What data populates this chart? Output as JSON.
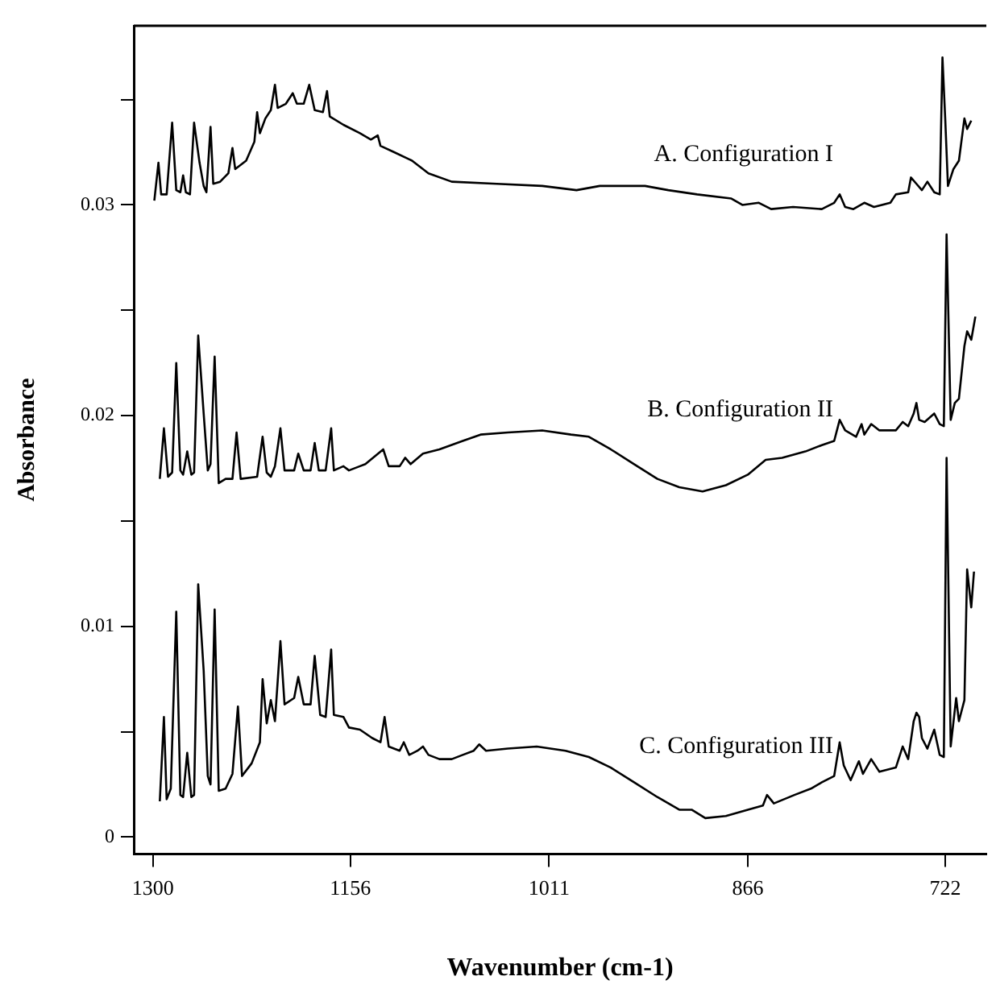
{
  "chart_data": {
    "type": "line",
    "xlabel": "Wavenumber (cm-1)",
    "ylabel": "Absorbance",
    "xlim": [
      1314,
      692
    ],
    "xticks": [
      1300,
      1156,
      1011,
      866,
      722
    ],
    "ylim": [
      -0.0008,
      0.0385
    ],
    "yticks": [
      0,
      {
        "value": 0.005,
        "label": null
      },
      0.01,
      {
        "value": 0.015,
        "label": null
      },
      0.02,
      {
        "value": 0.025,
        "label": null
      },
      0.03,
      {
        "value": 0.035,
        "label": null
      }
    ],
    "grid": false,
    "legend": false,
    "marker": "none",
    "line_style": "solid",
    "series": [
      {
        "name": "A. Configuration I",
        "color": "#000000",
        "x": [
          1299,
          1296,
          1294,
          1290,
          1286,
          1283,
          1280,
          1278,
          1276,
          1273,
          1270,
          1266,
          1263,
          1261,
          1258,
          1256,
          1251,
          1245,
          1242,
          1240,
          1232,
          1226,
          1224,
          1222,
          1218,
          1214,
          1211,
          1209,
          1203,
          1198,
          1195,
          1190,
          1186,
          1182,
          1176,
          1173,
          1171,
          1161,
          1149,
          1141,
          1136,
          1134,
          1124,
          1111,
          1099,
          1082,
          1049,
          1016,
          991,
          974,
          941,
          924,
          903,
          878,
          870,
          858,
          849,
          833,
          812,
          803,
          799,
          795,
          789,
          781,
          774,
          762,
          758,
          749,
          747,
          743,
          739,
          735,
          730,
          726,
          724,
          722,
          720,
          716,
          712,
          708,
          706,
          703
        ],
        "values": [
          0.0302,
          0.032,
          0.0305,
          0.0305,
          0.0339,
          0.0307,
          0.0306,
          0.0314,
          0.0306,
          0.0305,
          0.0339,
          0.032,
          0.0309,
          0.0306,
          0.0337,
          0.031,
          0.0311,
          0.0315,
          0.0327,
          0.0317,
          0.0321,
          0.033,
          0.0344,
          0.0334,
          0.0341,
          0.0345,
          0.0357,
          0.0346,
          0.0348,
          0.0353,
          0.0348,
          0.0348,
          0.0357,
          0.0345,
          0.0344,
          0.0354,
          0.0342,
          0.0338,
          0.0334,
          0.0331,
          0.0333,
          0.0328,
          0.0325,
          0.0321,
          0.0315,
          0.0311,
          0.031,
          0.0309,
          0.0307,
          0.0309,
          0.0309,
          0.0307,
          0.0305,
          0.0303,
          0.03,
          0.0301,
          0.0298,
          0.0299,
          0.0298,
          0.0301,
          0.0305,
          0.0299,
          0.0298,
          0.0301,
          0.0299,
          0.0301,
          0.0305,
          0.0306,
          0.0313,
          0.031,
          0.0307,
          0.0311,
          0.0306,
          0.0305,
          0.037,
          0.0341,
          0.0309,
          0.0317,
          0.0321,
          0.0341,
          0.0336,
          0.034
        ]
      },
      {
        "name": "B. Configuration II",
        "color": "#000000",
        "x": [
          1295,
          1292,
          1289,
          1286,
          1283,
          1280,
          1278,
          1275,
          1272,
          1270,
          1267,
          1263,
          1260,
          1258,
          1255,
          1252,
          1247,
          1242,
          1239,
          1236,
          1224,
          1220,
          1217,
          1214,
          1211,
          1207,
          1204,
          1197,
          1194,
          1190,
          1185,
          1182,
          1179,
          1174,
          1170,
          1168,
          1161,
          1157,
          1149,
          1145,
          1132,
          1128,
          1120,
          1116,
          1112,
          1103,
          1091,
          1074,
          1061,
          1041,
          1016,
          995,
          982,
          966,
          949,
          932,
          916,
          899,
          882,
          866,
          853,
          841,
          824,
          812,
          803,
          799,
          795,
          787,
          783,
          781,
          776,
          770,
          758,
          753,
          749,
          745,
          743,
          741,
          737,
          730,
          726,
          723,
          721,
          718,
          715,
          712,
          708,
          706,
          703,
          700
        ],
        "values": [
          0.017,
          0.0194,
          0.0171,
          0.0173,
          0.0225,
          0.0174,
          0.0172,
          0.0183,
          0.0172,
          0.0173,
          0.0238,
          0.0201,
          0.0174,
          0.0177,
          0.0228,
          0.0168,
          0.017,
          0.017,
          0.0192,
          0.017,
          0.0171,
          0.019,
          0.0173,
          0.0171,
          0.0176,
          0.0194,
          0.0174,
          0.0174,
          0.0182,
          0.0174,
          0.0174,
          0.0187,
          0.0174,
          0.0174,
          0.0194,
          0.0174,
          0.0176,
          0.0174,
          0.0176,
          0.0177,
          0.0184,
          0.0176,
          0.0176,
          0.018,
          0.0177,
          0.0182,
          0.0184,
          0.0188,
          0.0191,
          0.0192,
          0.0193,
          0.0191,
          0.019,
          0.0184,
          0.0177,
          0.017,
          0.0166,
          0.0164,
          0.0167,
          0.0172,
          0.0179,
          0.018,
          0.0183,
          0.0186,
          0.0188,
          0.0198,
          0.0193,
          0.019,
          0.0196,
          0.0191,
          0.0196,
          0.0193,
          0.0193,
          0.0197,
          0.0195,
          0.0201,
          0.0206,
          0.0198,
          0.0197,
          0.0201,
          0.0196,
          0.0195,
          0.0286,
          0.0198,
          0.0206,
          0.0208,
          0.0233,
          0.024,
          0.0236,
          0.0247
        ]
      },
      {
        "name": "C. Configuration III",
        "color": "#000000",
        "x": [
          1295,
          1292,
          1290,
          1287,
          1283,
          1280,
          1278,
          1275,
          1272,
          1270,
          1267,
          1263,
          1260,
          1258,
          1255,
          1252,
          1247,
          1242,
          1238,
          1235,
          1228,
          1222,
          1220,
          1217,
          1214,
          1211,
          1207,
          1204,
          1197,
          1194,
          1190,
          1185,
          1182,
          1178,
          1174,
          1170,
          1168,
          1161,
          1157,
          1149,
          1140,
          1134,
          1131,
          1128,
          1120,
          1117,
          1113,
          1107,
          1103,
          1099,
          1091,
          1082,
          1074,
          1066,
          1062,
          1057,
          1041,
          1020,
          999,
          982,
          966,
          949,
          932,
          916,
          907,
          897,
          882,
          866,
          855,
          852,
          847,
          832,
          820,
          812,
          803,
          799,
          796,
          791,
          785,
          782,
          776,
          770,
          758,
          753,
          749,
          745,
          743,
          741,
          739,
          735,
          730,
          726,
          723,
          721,
          718,
          714,
          712,
          708,
          706,
          703,
          701
        ],
        "values": [
          0.0017,
          0.0057,
          0.0018,
          0.0023,
          0.0107,
          0.002,
          0.0019,
          0.004,
          0.0019,
          0.002,
          0.012,
          0.0079,
          0.0029,
          0.0025,
          0.0108,
          0.0022,
          0.0023,
          0.003,
          0.0062,
          0.0029,
          0.0035,
          0.0045,
          0.0075,
          0.0054,
          0.0065,
          0.0055,
          0.0093,
          0.0063,
          0.0066,
          0.0076,
          0.0063,
          0.0063,
          0.0086,
          0.0058,
          0.0057,
          0.0089,
          0.0058,
          0.0057,
          0.0052,
          0.0051,
          0.0047,
          0.0045,
          0.0057,
          0.0043,
          0.0041,
          0.0045,
          0.0039,
          0.0041,
          0.0043,
          0.0039,
          0.0037,
          0.0037,
          0.0039,
          0.0041,
          0.0044,
          0.0041,
          0.0042,
          0.0043,
          0.0041,
          0.0038,
          0.0033,
          0.0026,
          0.0019,
          0.0013,
          0.0013,
          0.0009,
          0.001,
          0.0013,
          0.0015,
          0.002,
          0.0016,
          0.002,
          0.0023,
          0.0026,
          0.0029,
          0.0045,
          0.0034,
          0.0027,
          0.0036,
          0.003,
          0.0037,
          0.0031,
          0.0033,
          0.0043,
          0.0037,
          0.0055,
          0.0059,
          0.0057,
          0.0047,
          0.0042,
          0.0051,
          0.0039,
          0.0038,
          0.018,
          0.0043,
          0.0066,
          0.0055,
          0.0065,
          0.0127,
          0.0109,
          0.0126
        ]
      }
    ]
  }
}
